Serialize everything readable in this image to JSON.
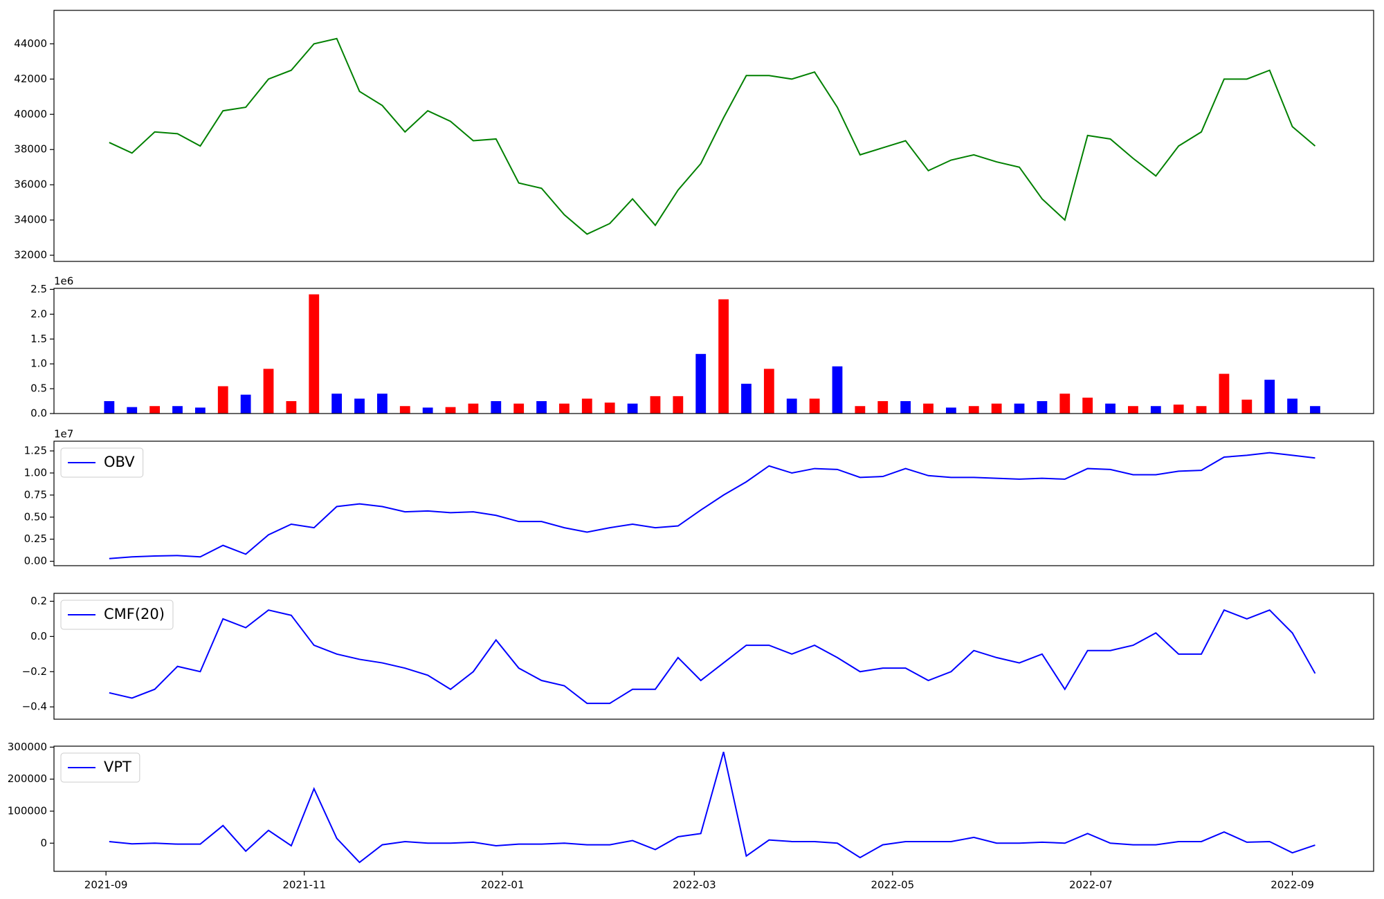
{
  "chart_data": [
    {
      "type": "line",
      "color": "#008000",
      "x": [
        "2021-09-02",
        "2021-09-09",
        "2021-09-16",
        "2021-09-23",
        "2021-09-30",
        "2021-10-07",
        "2021-10-14",
        "2021-10-21",
        "2021-10-28",
        "2021-11-04",
        "2021-11-11",
        "2021-11-18",
        "2021-11-25",
        "2021-12-02",
        "2021-12-09",
        "2021-12-16",
        "2021-12-23",
        "2021-12-30",
        "2022-01-06",
        "2022-01-13",
        "2022-01-20",
        "2022-01-27",
        "2022-02-03",
        "2022-02-10",
        "2022-02-17",
        "2022-02-24",
        "2022-03-03",
        "2022-03-10",
        "2022-03-17",
        "2022-03-24",
        "2022-03-31",
        "2022-04-07",
        "2022-04-14",
        "2022-04-21",
        "2022-04-28",
        "2022-05-05",
        "2022-05-12",
        "2022-05-19",
        "2022-05-26",
        "2022-06-02",
        "2022-06-09",
        "2022-06-16",
        "2022-06-23",
        "2022-06-30",
        "2022-07-07",
        "2022-07-14",
        "2022-07-21",
        "2022-07-28",
        "2022-08-04",
        "2022-08-11",
        "2022-08-18",
        "2022-08-25",
        "2022-09-01",
        "2022-09-08"
      ],
      "values": [
        38400,
        37800,
        39000,
        38900,
        38200,
        40200,
        40400,
        42000,
        42500,
        44000,
        44300,
        41300,
        40500,
        39000,
        40200,
        39600,
        38500,
        38600,
        36100,
        35800,
        34300,
        33200,
        33800,
        35200,
        33700,
        35700,
        37200,
        39800,
        42200,
        42200,
        42000,
        42400,
        40400,
        37700,
        38100,
        38500,
        36800,
        37400,
        37700,
        37300,
        37000,
        35200,
        34000,
        38800,
        38600,
        37500,
        36500,
        38200,
        39000,
        42000,
        42000,
        42500,
        39300,
        38200
      ],
      "xlim": [
        "2021-08-16",
        "2022-09-26"
      ],
      "ylim": [
        31650,
        45900
      ],
      "yticks": [
        32000,
        34000,
        36000,
        38000,
        40000,
        42000,
        44000
      ]
    },
    {
      "type": "bar",
      "offset_text": "1e6",
      "x": [
        "2021-09-02",
        "2021-09-09",
        "2021-09-16",
        "2021-09-23",
        "2021-09-30",
        "2021-10-07",
        "2021-10-14",
        "2021-10-21",
        "2021-10-28",
        "2021-11-04",
        "2021-11-11",
        "2021-11-18",
        "2021-11-25",
        "2021-12-02",
        "2021-12-09",
        "2021-12-16",
        "2021-12-23",
        "2021-12-30",
        "2022-01-06",
        "2022-01-13",
        "2022-01-20",
        "2022-01-27",
        "2022-02-03",
        "2022-02-10",
        "2022-02-17",
        "2022-02-24",
        "2022-03-03",
        "2022-03-10",
        "2022-03-17",
        "2022-03-24",
        "2022-03-31",
        "2022-04-07",
        "2022-04-14",
        "2022-04-21",
        "2022-04-28",
        "2022-05-05",
        "2022-05-12",
        "2022-05-19",
        "2022-05-26",
        "2022-06-02",
        "2022-06-09",
        "2022-06-16",
        "2022-06-23",
        "2022-06-30",
        "2022-07-07",
        "2022-07-14",
        "2022-07-21",
        "2022-07-28",
        "2022-08-04",
        "2022-08-11",
        "2022-08-18",
        "2022-08-25",
        "2022-09-01",
        "2022-09-08"
      ],
      "values": [
        250000,
        130000,
        150000,
        150000,
        120000,
        550000,
        380000,
        900000,
        250000,
        2400000,
        400000,
        300000,
        400000,
        150000,
        120000,
        130000,
        200000,
        250000,
        200000,
        250000,
        200000,
        300000,
        220000,
        200000,
        350000,
        350000,
        1200000,
        2300000,
        600000,
        900000,
        300000,
        300000,
        950000,
        150000,
        250000,
        250000,
        200000,
        120000,
        150000,
        200000,
        200000,
        250000,
        400000,
        320000,
        200000,
        150000,
        150000,
        180000,
        150000,
        800000,
        280000,
        680000,
        300000,
        150000
      ],
      "colors": [
        "#0000ff",
        "#0000ff",
        "#ff0000",
        "#0000ff",
        "#0000ff",
        "#ff0000",
        "#0000ff",
        "#ff0000",
        "#ff0000",
        "#ff0000",
        "#0000ff",
        "#0000ff",
        "#0000ff",
        "#ff0000",
        "#0000ff",
        "#ff0000",
        "#ff0000",
        "#0000ff",
        "#ff0000",
        "#0000ff",
        "#ff0000",
        "#ff0000",
        "#ff0000",
        "#0000ff",
        "#ff0000",
        "#ff0000",
        "#0000ff",
        "#ff0000",
        "#0000ff",
        "#ff0000",
        "#0000ff",
        "#ff0000",
        "#0000ff",
        "#ff0000",
        "#ff0000",
        "#0000ff",
        "#ff0000",
        "#0000ff",
        "#ff0000",
        "#ff0000",
        "#0000ff",
        "#0000ff",
        "#ff0000",
        "#ff0000",
        "#0000ff",
        "#ff0000",
        "#0000ff",
        "#ff0000",
        "#ff0000",
        "#ff0000",
        "#ff0000",
        "#0000ff",
        "#0000ff",
        "#0000ff"
      ],
      "xlim": [
        "2021-08-16",
        "2022-09-26"
      ],
      "ylim": [
        0,
        2520000
      ],
      "yticks": [
        {
          "value": 0,
          "label": "0.0"
        },
        {
          "value": 500000,
          "label": "0.5"
        },
        {
          "value": 1000000,
          "label": "1.0"
        },
        {
          "value": 1500000,
          "label": "1.5"
        },
        {
          "value": 2000000,
          "label": "2.0"
        },
        {
          "value": 2500000,
          "label": "2.5"
        }
      ]
    },
    {
      "type": "line",
      "offset_text": "1e7",
      "legend": "upper left",
      "x": [
        "2021-09-02",
        "2021-09-09",
        "2021-09-16",
        "2021-09-23",
        "2021-09-30",
        "2021-10-07",
        "2021-10-14",
        "2021-10-21",
        "2021-10-28",
        "2021-11-04",
        "2021-11-11",
        "2021-11-18",
        "2021-11-25",
        "2021-12-02",
        "2021-12-09",
        "2021-12-16",
        "2021-12-23",
        "2021-12-30",
        "2022-01-06",
        "2022-01-13",
        "2022-01-20",
        "2022-01-27",
        "2022-02-03",
        "2022-02-10",
        "2022-02-17",
        "2022-02-24",
        "2022-03-03",
        "2022-03-10",
        "2022-03-17",
        "2022-03-24",
        "2022-03-31",
        "2022-04-07",
        "2022-04-14",
        "2022-04-21",
        "2022-04-28",
        "2022-05-05",
        "2022-05-12",
        "2022-05-19",
        "2022-05-26",
        "2022-06-02",
        "2022-06-09",
        "2022-06-16",
        "2022-06-23",
        "2022-06-30",
        "2022-07-07",
        "2022-07-14",
        "2022-07-21",
        "2022-07-28",
        "2022-08-04",
        "2022-08-11",
        "2022-08-18",
        "2022-08-25",
        "2022-09-01",
        "2022-09-08"
      ],
      "series": [
        {
          "name": "OBV",
          "color": "#0000ff",
          "values": [
            300000,
            500000,
            600000,
            650000,
            500000,
            1800000,
            800000,
            3000000,
            4200000,
            3800000,
            6200000,
            6500000,
            6200000,
            5600000,
            5700000,
            5500000,
            5600000,
            5200000,
            4500000,
            4500000,
            3800000,
            3300000,
            3800000,
            4200000,
            3800000,
            4000000,
            5800000,
            7500000,
            9000000,
            10800000,
            10000000,
            10500000,
            10400000,
            9500000,
            9600000,
            10500000,
            9700000,
            9500000,
            9500000,
            9400000,
            9300000,
            9400000,
            9300000,
            10500000,
            10400000,
            9800000,
            9800000,
            10200000,
            10300000,
            11800000,
            12000000,
            12300000,
            12000000,
            11700000
          ]
        }
      ],
      "xlim": [
        "2021-08-16",
        "2022-09-26"
      ],
      "ylim": [
        -500000,
        13600000
      ],
      "yticks": [
        {
          "value": 0,
          "label": "0.00"
        },
        {
          "value": 2500000,
          "label": "0.25"
        },
        {
          "value": 5000000,
          "label": "0.50"
        },
        {
          "value": 7500000,
          "label": "0.75"
        },
        {
          "value": 10000000,
          "label": "1.00"
        },
        {
          "value": 12500000,
          "label": "1.25"
        }
      ]
    },
    {
      "type": "line",
      "legend": "upper left",
      "x": [
        "2021-09-02",
        "2021-09-09",
        "2021-09-16",
        "2021-09-23",
        "2021-09-30",
        "2021-10-07",
        "2021-10-14",
        "2021-10-21",
        "2021-10-28",
        "2021-11-04",
        "2021-11-11",
        "2021-11-18",
        "2021-11-25",
        "2021-12-02",
        "2021-12-09",
        "2021-12-16",
        "2021-12-23",
        "2021-12-30",
        "2022-01-06",
        "2022-01-13",
        "2022-01-20",
        "2022-01-27",
        "2022-02-03",
        "2022-02-10",
        "2022-02-17",
        "2022-02-24",
        "2022-03-03",
        "2022-03-10",
        "2022-03-17",
        "2022-03-24",
        "2022-03-31",
        "2022-04-07",
        "2022-04-14",
        "2022-04-21",
        "2022-04-28",
        "2022-05-05",
        "2022-05-12",
        "2022-05-19",
        "2022-05-26",
        "2022-06-02",
        "2022-06-09",
        "2022-06-16",
        "2022-06-23",
        "2022-06-30",
        "2022-07-07",
        "2022-07-14",
        "2022-07-21",
        "2022-07-28",
        "2022-08-04",
        "2022-08-11",
        "2022-08-18",
        "2022-08-25",
        "2022-09-01",
        "2022-09-08"
      ],
      "series": [
        {
          "name": "CMF(20)",
          "color": "#0000ff",
          "values": [
            -0.32,
            -0.35,
            -0.3,
            -0.17,
            -0.2,
            0.1,
            0.05,
            0.15,
            0.12,
            -0.05,
            -0.1,
            -0.13,
            -0.15,
            -0.18,
            -0.22,
            -0.3,
            -0.2,
            -0.02,
            -0.18,
            -0.25,
            -0.28,
            -0.38,
            -0.38,
            -0.3,
            -0.3,
            -0.12,
            -0.25,
            -0.15,
            -0.05,
            -0.05,
            -0.1,
            -0.05,
            -0.12,
            -0.2,
            -0.18,
            -0.18,
            -0.25,
            -0.2,
            -0.08,
            -0.12,
            -0.15,
            -0.1,
            -0.3,
            -0.08,
            -0.08,
            -0.05,
            0.02,
            -0.1,
            -0.1,
            0.15,
            0.1,
            0.15,
            0.02,
            -0.21
          ]
        }
      ],
      "xlim": [
        "2021-08-16",
        "2022-09-26"
      ],
      "ylim": [
        -0.47,
        0.245
      ],
      "yticks": [
        {
          "value": -0.4,
          "label": "−0.4"
        },
        {
          "value": -0.2,
          "label": "−0.2"
        },
        {
          "value": 0,
          "label": "0.0"
        },
        {
          "value": 0.2,
          "label": "0.2"
        }
      ]
    },
    {
      "type": "line",
      "legend": "upper left",
      "x": [
        "2021-09-02",
        "2021-09-09",
        "2021-09-16",
        "2021-09-23",
        "2021-09-30",
        "2021-10-07",
        "2021-10-14",
        "2021-10-21",
        "2021-10-28",
        "2021-11-04",
        "2021-11-11",
        "2021-11-18",
        "2021-11-25",
        "2021-12-02",
        "2021-12-09",
        "2021-12-16",
        "2021-12-23",
        "2021-12-30",
        "2022-01-06",
        "2022-01-13",
        "2022-01-20",
        "2022-01-27",
        "2022-02-03",
        "2022-02-10",
        "2022-02-17",
        "2022-02-24",
        "2022-03-03",
        "2022-03-10",
        "2022-03-17",
        "2022-03-24",
        "2022-03-31",
        "2022-04-07",
        "2022-04-14",
        "2022-04-21",
        "2022-04-28",
        "2022-05-05",
        "2022-05-12",
        "2022-05-19",
        "2022-05-26",
        "2022-06-02",
        "2022-06-09",
        "2022-06-16",
        "2022-06-23",
        "2022-06-30",
        "2022-07-07",
        "2022-07-14",
        "2022-07-21",
        "2022-07-28",
        "2022-08-04",
        "2022-08-11",
        "2022-08-18",
        "2022-08-25",
        "2022-09-01",
        "2022-09-08"
      ],
      "series": [
        {
          "name": "VPT",
          "color": "#0000ff",
          "values": [
            5000,
            -2000,
            0,
            -3000,
            -3000,
            55000,
            -25000,
            40000,
            -8000,
            170000,
            15000,
            -60000,
            -5000,
            5000,
            0,
            0,
            3000,
            -8000,
            -3000,
            -3000,
            0,
            -5000,
            -5000,
            8000,
            -20000,
            20000,
            30000,
            285000,
            -40000,
            10000,
            5000,
            5000,
            0,
            -45000,
            -5000,
            5000,
            5000,
            5000,
            18000,
            0,
            0,
            3000,
            0,
            30000,
            0,
            -5000,
            -5000,
            5000,
            5000,
            35000,
            3000,
            5000,
            -30000,
            -6000
          ]
        }
      ],
      "xlim": [
        "2021-08-16",
        "2022-09-26"
      ],
      "ylim": [
        -88000,
        303000
      ],
      "yticks": [
        0,
        100000,
        200000,
        300000
      ],
      "xticks": [
        {
          "value": "2021-09-01",
          "label": "2021-09"
        },
        {
          "value": "2021-11-01",
          "label": "2021-11"
        },
        {
          "value": "2022-01-01",
          "label": "2022-01"
        },
        {
          "value": "2022-03-01",
          "label": "2022-03"
        },
        {
          "value": "2022-05-01",
          "label": "2022-05"
        },
        {
          "value": "2022-07-01",
          "label": "2022-07"
        },
        {
          "value": "2022-09-01",
          "label": "2022-09"
        }
      ]
    }
  ]
}
